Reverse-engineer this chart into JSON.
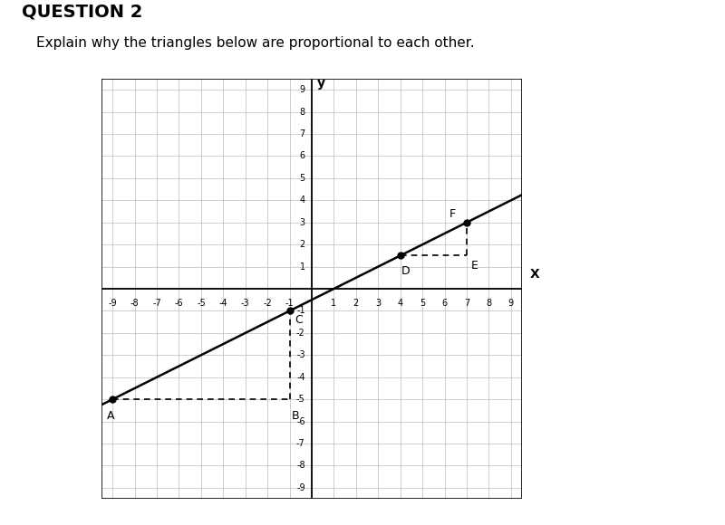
{
  "title": "QUESTION 2",
  "subtitle": "Explain why the triangles below are proportional to each other.",
  "xlim": [
    -9.5,
    9.5
  ],
  "ylim": [
    -9.5,
    9.5
  ],
  "xticks": [
    -9,
    -8,
    -7,
    -6,
    -5,
    -4,
    -3,
    -2,
    -1,
    1,
    2,
    3,
    4,
    5,
    6,
    7,
    8,
    9
  ],
  "yticks": [
    -9,
    -8,
    -7,
    -6,
    -5,
    -4,
    -3,
    -2,
    -1,
    1,
    2,
    3,
    4,
    5,
    6,
    7,
    8,
    9
  ],
  "line_slope": 0.5,
  "line_intercept": -0.5,
  "point_A": [
    -9,
    -5
  ],
  "point_B": [
    -1,
    -5
  ],
  "point_C": [
    -1,
    -1
  ],
  "point_D": [
    4,
    1.5
  ],
  "point_E": [
    7,
    1.5
  ],
  "point_F": [
    7,
    3
  ],
  "grid_color": "#bbbbbb",
  "axis_color": "#000000",
  "line_color": "#000000",
  "bg_color": "#ffffff",
  "title_fontsize": 14,
  "subtitle_fontsize": 11,
  "tick_fontsize": 8,
  "label_fontsize": 10
}
